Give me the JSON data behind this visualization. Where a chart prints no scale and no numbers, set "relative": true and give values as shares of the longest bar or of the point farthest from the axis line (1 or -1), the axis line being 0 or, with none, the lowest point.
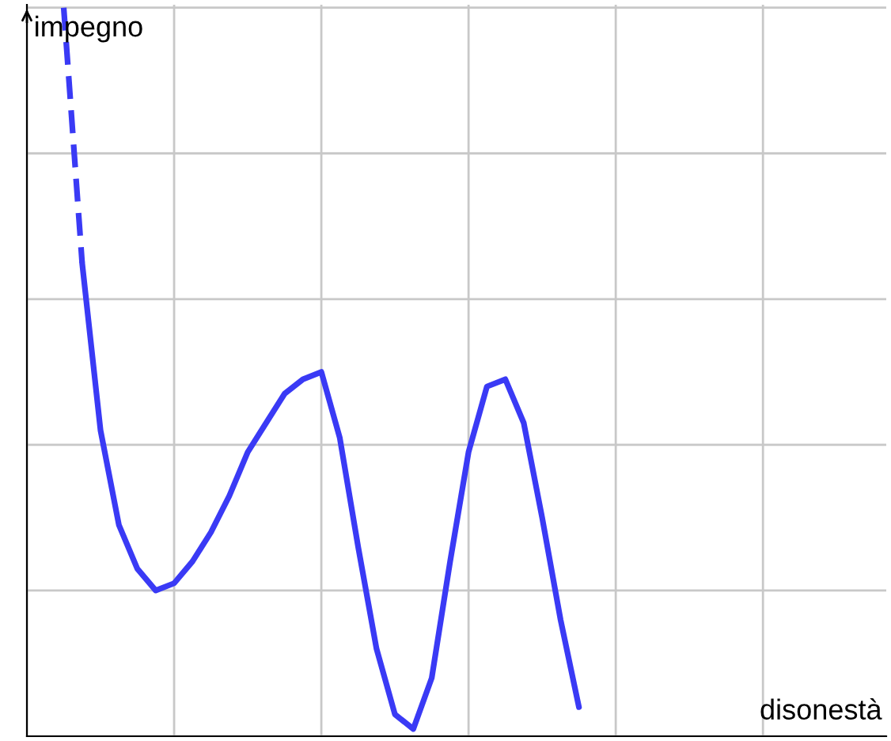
{
  "chart_data": {
    "type": "line",
    "relative": true,
    "xlabel": "disonestà",
    "ylabel": "impegno",
    "grid": true,
    "marker": "none",
    "categories": [
      null,
      null,
      null,
      null,
      null,
      null,
      null,
      null,
      null,
      null,
      null,
      null,
      null,
      null,
      null,
      null,
      null,
      null,
      null,
      null,
      null,
      null,
      null,
      null,
      null,
      null,
      null,
      null,
      null,
      null,
      null,
      null,
      null,
      null,
      null,
      null,
      null,
      null,
      null,
      null,
      null,
      null,
      null,
      null,
      null,
      null,
      null
    ],
    "series": [
      {
        "color": "#3a3af5",
        "line_style": "dashed",
        "values": [
          null,
          null,
          1.0,
          0.65,
          null,
          null,
          null,
          null,
          null,
          null,
          null,
          null,
          null,
          null,
          null,
          null,
          null,
          null,
          null,
          null,
          null,
          null,
          null,
          null,
          null,
          null,
          null,
          null,
          null,
          null,
          null,
          null,
          null,
          null,
          null,
          null,
          null,
          null,
          null,
          null,
          null,
          null,
          null,
          null,
          null,
          null,
          null
        ]
      },
      {
        "color": "#3a3af5",
        "line_style": "solid",
        "values": [
          null,
          null,
          null,
          0.65,
          0.42,
          0.29,
          0.23,
          0.2,
          0.21,
          0.24,
          0.28,
          0.33,
          0.39,
          0.43,
          0.47,
          0.49,
          0.5,
          0.41,
          0.26,
          0.12,
          0.03,
          0.01,
          0.08,
          0.24,
          0.39,
          0.48,
          0.49,
          0.43,
          0.3,
          0.16,
          0.04,
          null,
          null,
          null,
          null,
          null,
          null,
          null,
          null,
          null,
          null,
          null,
          null,
          null,
          null,
          null,
          null
        ]
      }
    ]
  }
}
